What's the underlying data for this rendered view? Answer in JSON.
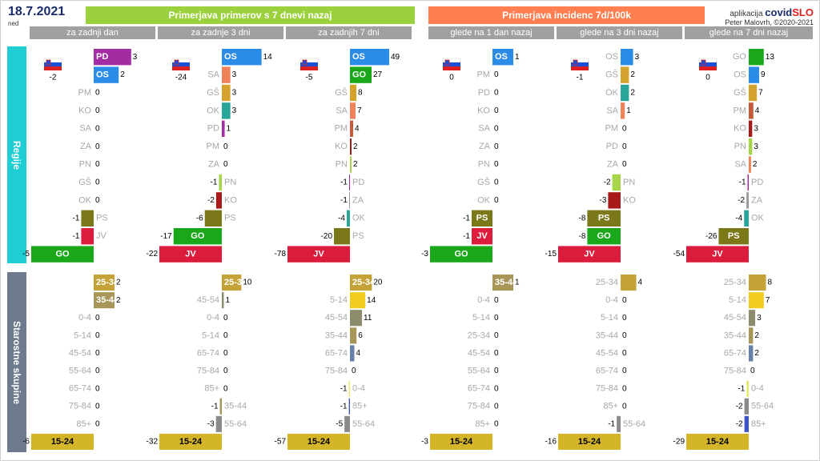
{
  "header": {
    "date": "18.7.2021",
    "day": "ned",
    "banner_cases": "Primerjava primerov s 7 dnevi nazaj",
    "banner_incidence": "Primerjava incidenc 7d/100k",
    "app_label": "aplikacija",
    "app_name_part1": "covid",
    "app_name_part2": "SLO",
    "author": "Peter Malovrh, ©2020-2021"
  },
  "sections": {
    "regions": "Regije",
    "age_groups": "Starostne skupine"
  },
  "colors": {
    "PD": "#a32ca3",
    "OS": "#2b8ce8",
    "GO": "#1aa81a",
    "JV": "#dc1c3c",
    "PS": "#7a7818",
    "SA": "#f0825a",
    "GŠ": "#d6a22e",
    "KO": "#a81a1a",
    "OK": "#2aa59a",
    "ZA": "#9a9a9a",
    "PN": "#a6d648",
    "PM": "#c55a3a",
    "0-4": "#e8e86a",
    "5-14": "#f0cc1e",
    "15-24": "#d4b52a",
    "25-34": "#c4a238",
    "35-44": "#a89658",
    "45-54": "#8c8c6c",
    "55-64": "#8a8a8a",
    "65-74": "#6680a8",
    "75-84": "#9a9ab8",
    "85+": "#3c56c8",
    "label_gray": "#a8a8a8",
    "value_text": "#000000"
  },
  "chart_data": [
    {
      "type": "bar",
      "orientation": "horizontal",
      "title": "za zadnji dan",
      "group": "Primerjava primerov s 7 dnevi nazaj",
      "slovenia_total": -2,
      "regions": {
        "categories": [
          "PD",
          "OS",
          "PM",
          "KO",
          "SA",
          "ZA",
          "PN",
          "GŠ",
          "OK",
          "PS",
          "JV",
          "GO"
        ],
        "values": [
          3,
          2,
          0,
          0,
          0,
          0,
          0,
          0,
          0,
          -1,
          -1,
          -5
        ]
      },
      "age_groups": {
        "categories": [
          "25-34",
          "35-44",
          "0-4",
          "5-14",
          "45-54",
          "55-64",
          "65-74",
          "75-84",
          "85+",
          "15-24"
        ],
        "values": [
          2,
          2,
          0,
          0,
          0,
          0,
          0,
          0,
          0,
          -6
        ]
      }
    },
    {
      "type": "bar",
      "orientation": "horizontal",
      "title": "za zadnje 3 dni",
      "group": "Primerjava primerov s 7 dnevi nazaj",
      "slovenia_total": -24,
      "regions": {
        "categories": [
          "OS",
          "SA",
          "GŠ",
          "OK",
          "PD",
          "PM",
          "ZA",
          "PN",
          "KO",
          "PS",
          "GO",
          "JV"
        ],
        "values": [
          14,
          3,
          3,
          3,
          1,
          0,
          0,
          -1,
          -2,
          -6,
          -17,
          -22
        ]
      },
      "age_groups": {
        "categories": [
          "25-34",
          "45-54",
          "0-4",
          "5-14",
          "65-74",
          "75-84",
          "85+",
          "35-44",
          "55-64",
          "15-24"
        ],
        "values": [
          10,
          1,
          0,
          0,
          0,
          0,
          0,
          -1,
          -3,
          -32
        ]
      }
    },
    {
      "type": "bar",
      "orientation": "horizontal",
      "title": "za zadnjih 7 dni",
      "group": "Primerjava primerov s 7 dnevi nazaj",
      "slovenia_total": -5,
      "regions": {
        "categories": [
          "OS",
          "GO",
          "GŠ",
          "SA",
          "PM",
          "KO",
          "PN",
          "PD",
          "ZA",
          "OK",
          "PS",
          "JV"
        ],
        "values": [
          49,
          27,
          8,
          7,
          4,
          2,
          2,
          -1,
          -1,
          -4,
          -20,
          -78
        ]
      },
      "age_groups": {
        "categories": [
          "25-34",
          "5-14",
          "45-54",
          "35-44",
          "65-74",
          "75-84",
          "0-4",
          "85+",
          "55-64",
          "15-24"
        ],
        "values": [
          20,
          14,
          11,
          6,
          4,
          0,
          -1,
          -1,
          -5,
          -57
        ]
      }
    },
    {
      "type": "bar",
      "orientation": "horizontal",
      "title": "glede na 1 dan nazaj",
      "group": "Primerjava incidenc 7d/100k",
      "slovenia_total": 0,
      "regions": {
        "categories": [
          "OS",
          "PM",
          "PD",
          "KO",
          "SA",
          "ZA",
          "PN",
          "GŠ",
          "OK",
          "PS",
          "JV",
          "GO"
        ],
        "values": [
          1,
          0,
          0,
          0,
          0,
          0,
          0,
          0,
          0,
          -1,
          -1,
          -3
        ]
      },
      "age_groups": {
        "categories": [
          "35-44",
          "0-4",
          "5-14",
          "25-34",
          "45-54",
          "55-64",
          "65-74",
          "75-84",
          "85+",
          "15-24"
        ],
        "values": [
          1,
          0,
          0,
          0,
          0,
          0,
          0,
          0,
          0,
          -3
        ]
      }
    },
    {
      "type": "bar",
      "orientation": "horizontal",
      "title": "glede na 3 dni nazaj",
      "group": "Primerjava incidenc 7d/100k",
      "slovenia_total": -1,
      "regions": {
        "categories": [
          "OS",
          "GŠ",
          "OK",
          "SA",
          "PM",
          "PD",
          "ZA",
          "PN",
          "KO",
          "PS",
          "GO",
          "JV"
        ],
        "values": [
          3,
          2,
          2,
          1,
          0,
          0,
          0,
          -2,
          -3,
          -8,
          -8,
          -15
        ]
      },
      "age_groups": {
        "categories": [
          "25-34",
          "0-4",
          "5-14",
          "35-44",
          "45-54",
          "65-74",
          "75-84",
          "85+",
          "55-64",
          "15-24"
        ],
        "values": [
          4,
          0,
          0,
          0,
          0,
          0,
          0,
          0,
          -1,
          -16
        ]
      }
    },
    {
      "type": "bar",
      "orientation": "horizontal",
      "title": "glede na 7 dni nazaj",
      "group": "Primerjava incidenc 7d/100k",
      "slovenia_total": 0,
      "regions": {
        "categories": [
          "GO",
          "OS",
          "GŠ",
          "PM",
          "KO",
          "PN",
          "SA",
          "PD",
          "ZA",
          "OK",
          "PS",
          "JV"
        ],
        "values": [
          13,
          9,
          7,
          4,
          3,
          3,
          2,
          -1,
          -2,
          -4,
          -26,
          -54
        ]
      },
      "age_groups": {
        "categories": [
          "25-34",
          "5-14",
          "45-54",
          "35-44",
          "65-74",
          "75-84",
          "0-4",
          "55-64",
          "85+",
          "15-24"
        ],
        "values": [
          8,
          7,
          3,
          2,
          2,
          0,
          -1,
          -2,
          -2,
          -29
        ]
      }
    }
  ]
}
